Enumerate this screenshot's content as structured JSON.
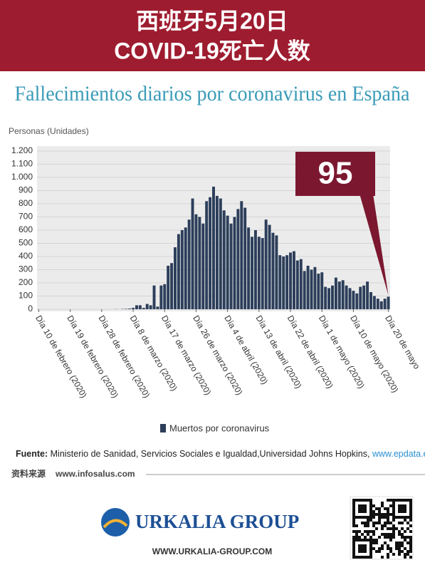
{
  "header": {
    "line1": "西班牙5月20日",
    "line2": "COVID-19死亡人数"
  },
  "chart_data": {
    "type": "bar",
    "title": "Fallecimientos diarios por coronavirus en España",
    "ylabel": "Personas (Unidades)",
    "annotation": "95",
    "categories": [
      "Día 10 de febrero (2020)",
      null,
      null,
      null,
      null,
      null,
      null,
      null,
      null,
      "Día 19 de febrero (2020)",
      null,
      null,
      null,
      null,
      null,
      null,
      null,
      null,
      "Día 28 de febrero (2020)",
      null,
      null,
      null,
      null,
      null,
      null,
      null,
      null,
      "Día 8 de marzo (2020)",
      null,
      null,
      null,
      null,
      null,
      null,
      null,
      null,
      "Día 17 de marzo (2020)",
      null,
      null,
      null,
      null,
      null,
      null,
      null,
      null,
      "Día 26 de marzo (2020)",
      null,
      null,
      null,
      null,
      null,
      null,
      null,
      null,
      "Día 4 de abril (2020)",
      null,
      null,
      null,
      null,
      null,
      null,
      null,
      null,
      "Día 13 de abril (2020)",
      null,
      null,
      null,
      null,
      null,
      null,
      null,
      null,
      "Día 22 de abril (2020)",
      null,
      null,
      null,
      null,
      null,
      null,
      null,
      null,
      "Día 1 de mayo (2020)",
      null,
      null,
      null,
      null,
      null,
      null,
      null,
      null,
      "Día 10 de mayo (2020)",
      null,
      null,
      null,
      null,
      null,
      null,
      null,
      null,
      null,
      "Día 20 de mayo"
    ],
    "series": [
      {
        "name": "Muertos por coronavirus",
        "color": "#2c3e5a",
        "values": [
          0,
          0,
          0,
          0,
          0,
          0,
          0,
          0,
          0,
          0,
          0,
          0,
          0,
          0,
          0,
          0,
          0,
          0,
          0,
          0,
          0,
          0,
          1,
          0,
          2,
          3,
          5,
          10,
          30,
          30,
          10,
          40,
          30,
          180,
          20,
          180,
          190,
          330,
          350,
          470,
          570,
          600,
          620,
          680,
          840,
          720,
          700,
          650,
          820,
          850,
          930,
          860,
          840,
          750,
          710,
          650,
          700,
          760,
          820,
          770,
          620,
          550,
          600,
          550,
          540,
          680,
          640,
          580,
          560,
          410,
          400,
          410,
          430,
          440,
          370,
          380,
          290,
          330,
          300,
          320,
          270,
          280,
          170,
          160,
          180,
          240,
          210,
          220,
          180,
          160,
          140,
          120,
          170,
          180,
          210,
          130,
          100,
          80,
          60,
          80,
          95
        ]
      }
    ],
    "ylim": [
      0,
      1200
    ],
    "yticks": [
      0,
      100,
      200,
      300,
      400,
      500,
      600,
      700,
      800,
      900,
      {
        "value": 1000,
        "label": "1.000"
      },
      {
        "value": 1100,
        "label": "1.100"
      },
      {
        "value": 1200,
        "label": "1.200"
      }
    ],
    "grid": true,
    "legend": "bottom"
  },
  "source": {
    "label": "Fuente:",
    "text": "Ministerio de Sanidad, Servicios Sociales e Igualdad,Universidad Johns Hopkins,",
    "link": "www.epdata.es"
  },
  "footer": {
    "source_note": "资料来源",
    "site": "www.infosalus.com",
    "brand": "URKALIA GROUP",
    "url": "WWW.URKALIA-GROUP.COM"
  }
}
